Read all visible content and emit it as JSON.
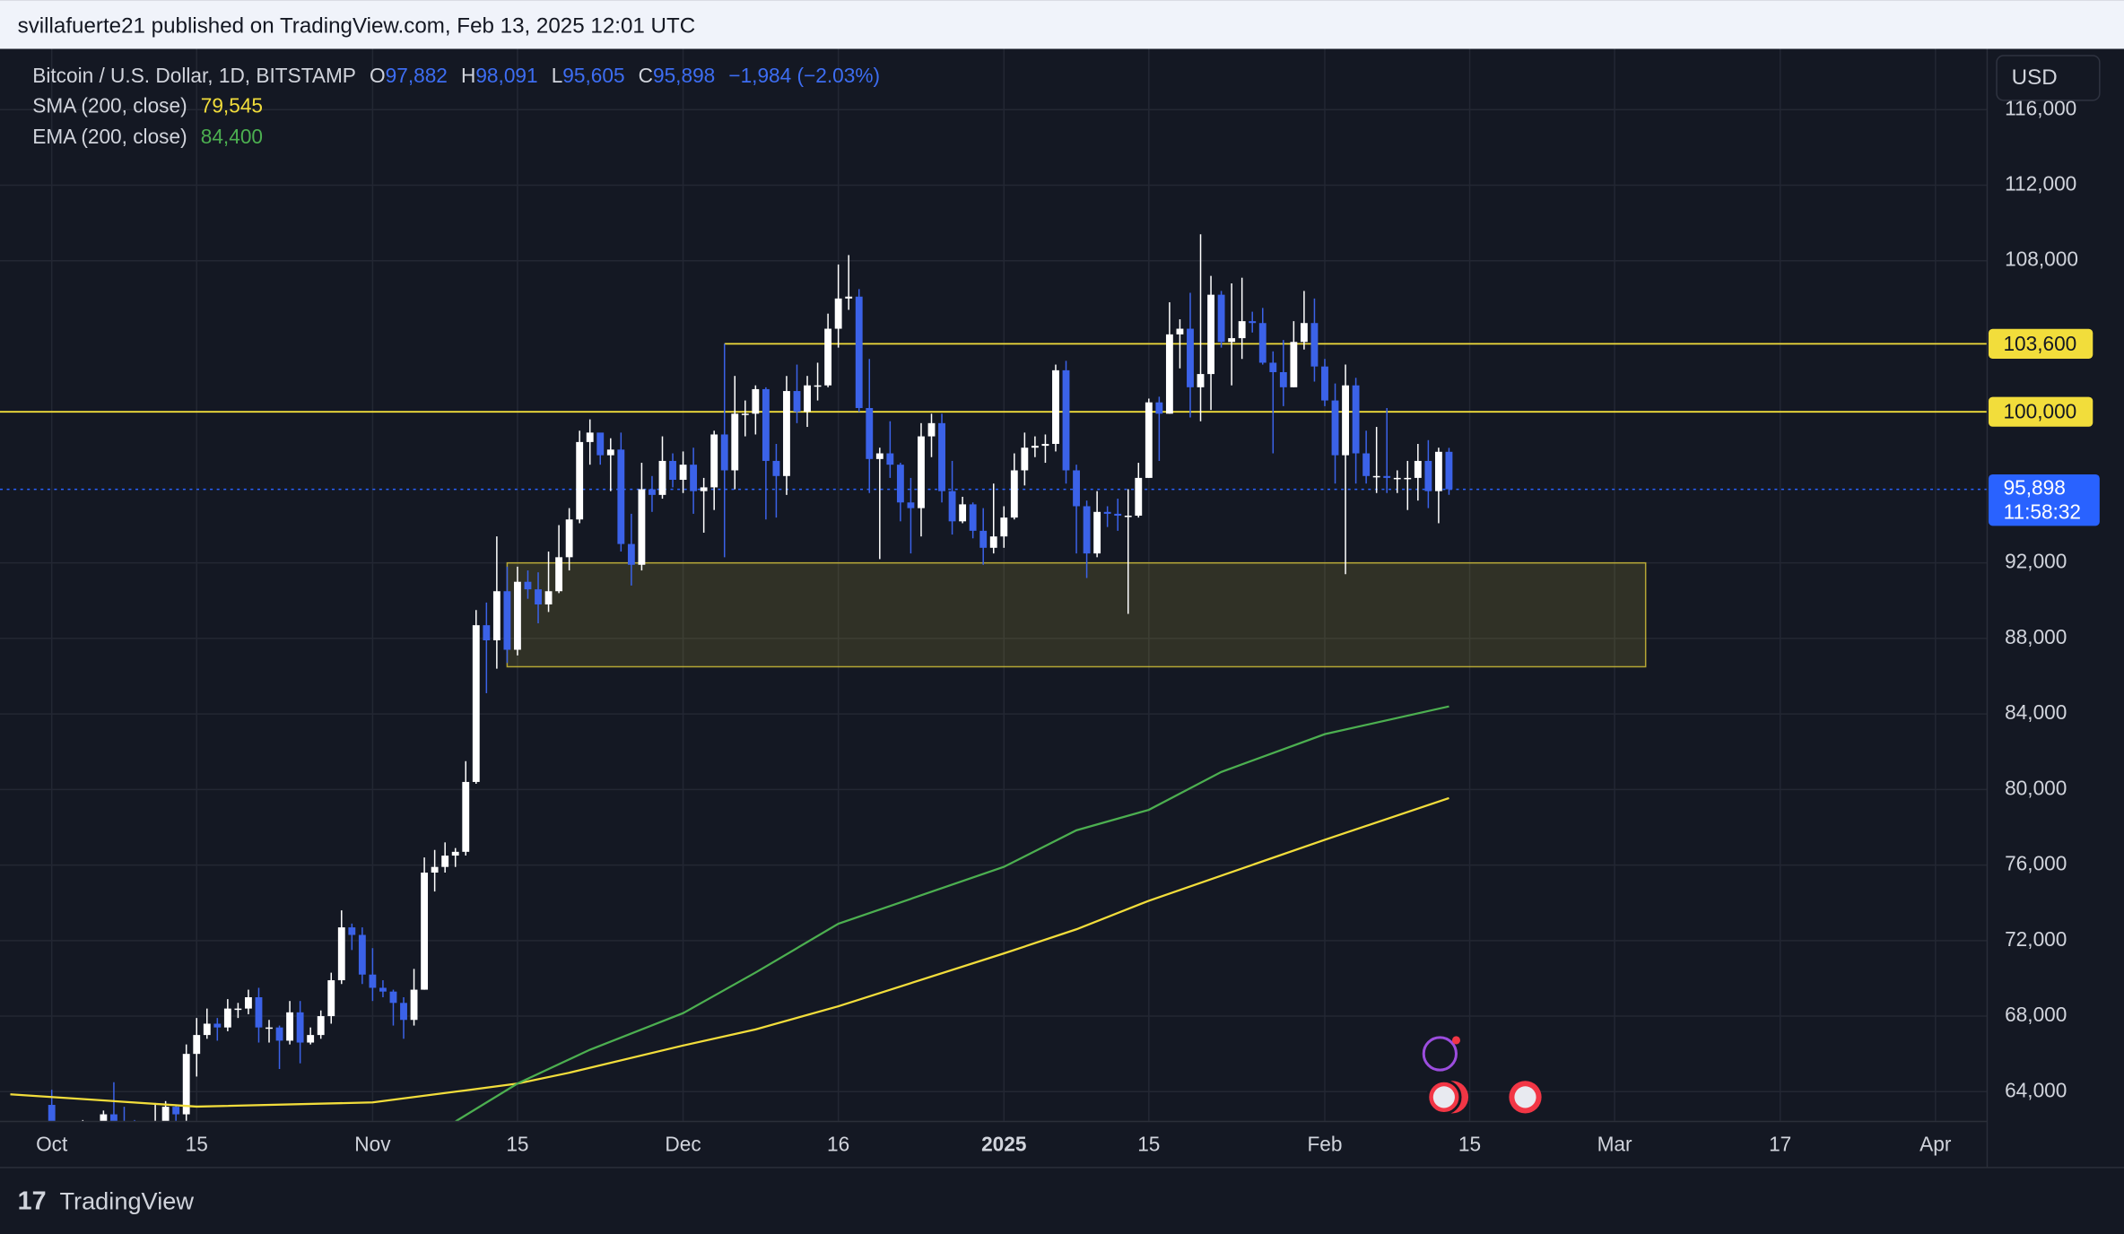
{
  "header": {
    "attribution": "svillafuerte21 published on TradingView.com, Feb 13, 2025 12:01 UTC"
  },
  "chart_data": {
    "type": "candlestick",
    "symbol": "Bitcoin / U.S. Dollar, 1D, BITSTAMP",
    "ohlc_legend": [
      {
        "prefix": "O",
        "value": "97,882"
      },
      {
        "prefix": "H",
        "value": "98,091"
      },
      {
        "prefix": "L",
        "value": "95,605"
      },
      {
        "prefix": "C",
        "value": "95,898"
      }
    ],
    "change": "−1,984 (−2.03%)",
    "currency": "USD",
    "up_color": "#ffffff",
    "down_color": "#3b62e8",
    "x": [
      "2024-10-01",
      "2024-10-02",
      "2024-10-03",
      "2024-10-04",
      "2024-10-05",
      "2024-10-06",
      "2024-10-07",
      "2024-10-08",
      "2024-10-09",
      "2024-10-10",
      "2024-10-11",
      "2024-10-12",
      "2024-10-13",
      "2024-10-14",
      "2024-10-15",
      "2024-10-16",
      "2024-10-17",
      "2024-10-18",
      "2024-10-19",
      "2024-10-20",
      "2024-10-21",
      "2024-10-22",
      "2024-10-23",
      "2024-10-24",
      "2024-10-25",
      "2024-10-26",
      "2024-10-27",
      "2024-10-28",
      "2024-10-29",
      "2024-10-30",
      "2024-10-31",
      "2024-11-01",
      "2024-11-02",
      "2024-11-03",
      "2024-11-04",
      "2024-11-05",
      "2024-11-06",
      "2024-11-07",
      "2024-11-08",
      "2024-11-09",
      "2024-11-10",
      "2024-11-11",
      "2024-11-12",
      "2024-11-13",
      "2024-11-14",
      "2024-11-15",
      "2024-11-16",
      "2024-11-17",
      "2024-11-18",
      "2024-11-19",
      "2024-11-20",
      "2024-11-21",
      "2024-11-22",
      "2024-11-23",
      "2024-11-24",
      "2024-11-25",
      "2024-11-26",
      "2024-11-27",
      "2024-11-28",
      "2024-11-29",
      "2024-11-30",
      "2024-12-01",
      "2024-12-02",
      "2024-12-03",
      "2024-12-04",
      "2024-12-05",
      "2024-12-06",
      "2024-12-07",
      "2024-12-08",
      "2024-12-09",
      "2024-12-10",
      "2024-12-11",
      "2024-12-12",
      "2024-12-13",
      "2024-12-14",
      "2024-12-15",
      "2024-12-16",
      "2024-12-17",
      "2024-12-18",
      "2024-12-19",
      "2024-12-20",
      "2024-12-21",
      "2024-12-22",
      "2024-12-23",
      "2024-12-24",
      "2024-12-25",
      "2024-12-26",
      "2024-12-27",
      "2024-12-28",
      "2024-12-29",
      "2024-12-30",
      "2024-12-31",
      "2025-01-01",
      "2025-01-02",
      "2025-01-03",
      "2025-01-04",
      "2025-01-05",
      "2025-01-06",
      "2025-01-07",
      "2025-01-08",
      "2025-01-09",
      "2025-01-10",
      "2025-01-11",
      "2025-01-12",
      "2025-01-13",
      "2025-01-14",
      "2025-01-15",
      "2025-01-16",
      "2025-01-17",
      "2025-01-18",
      "2025-01-19",
      "2025-01-20",
      "2025-01-21",
      "2025-01-22",
      "2025-01-23",
      "2025-01-24",
      "2025-01-25",
      "2025-01-26",
      "2025-01-27",
      "2025-01-28",
      "2025-01-29",
      "2025-01-30",
      "2025-01-31",
      "2025-02-01",
      "2025-02-02",
      "2025-02-03",
      "2025-02-04",
      "2025-02-05",
      "2025-02-06",
      "2025-02-07",
      "2025-02-08",
      "2025-02-09",
      "2025-02-10",
      "2025-02-11",
      "2025-02-12",
      "2025-02-13"
    ],
    "open": [
      63300,
      60800,
      60600,
      60700,
      62100,
      62050,
      62800,
      62200,
      62100,
      60600,
      60300,
      62400,
      63200,
      62800,
      66000,
      67000,
      67600,
      67400,
      68400,
      68400,
      69000,
      67400,
      67400,
      66700,
      68200,
      66600,
      67000,
      68000,
      69900,
      72700,
      72300,
      70200,
      69500,
      69300,
      68700,
      67800,
      69400,
      75600,
      75900,
      76500,
      76700,
      80400,
      88700,
      87900,
      90500,
      87400,
      91000,
      90600,
      89800,
      90500,
      92300,
      94300,
      98400,
      98900,
      97700,
      98000,
      93000,
      91900,
      95900,
      95600,
      97400,
      96400,
      97200,
      95800,
      96000,
      98800,
      96900,
      99900,
      99900,
      101200,
      97400,
      96600,
      101100,
      100000,
      101400,
      101400,
      104400,
      106000,
      106100,
      100200,
      97500,
      97800,
      97200,
      95200,
      94900,
      98700,
      99400,
      95800,
      94200,
      95100,
      93700,
      92800,
      93400,
      94400,
      96900,
      98100,
      98200,
      98300,
      102200,
      96900,
      95000,
      92500,
      94700,
      94600,
      94500,
      94500,
      96500,
      100500,
      99900,
      104100,
      104400,
      101300,
      102000,
      106200,
      103700,
      103900,
      104800,
      104700,
      102600,
      102100,
      101300,
      103700,
      104700,
      102400,
      100600,
      97700,
      101400,
      97800,
      96600,
      96600,
      96500,
      96500,
      96500,
      97400,
      95800,
      97882
    ],
    "high": [
      64100,
      62400,
      61500,
      62500,
      62400,
      63000,
      64500,
      63200,
      62500,
      61400,
      63400,
      63500,
      63300,
      66500,
      67900,
      68400,
      67900,
      68900,
      68700,
      69400,
      69500,
      67800,
      67500,
      68800,
      68800,
      67400,
      68300,
      70300,
      73600,
      72900,
      72700,
      71600,
      69900,
      69400,
      69000,
      70500,
      76400,
      76800,
      77200,
      76900,
      81500,
      89500,
      89900,
      93400,
      91800,
      91800,
      91600,
      91500,
      92600,
      94000,
      94900,
      99000,
      99600,
      98700,
      98600,
      98900,
      94600,
      97300,
      96600,
      98700,
      97800,
      97900,
      98100,
      96500,
      99000,
      103600,
      101900,
      100600,
      101400,
      101300,
      98300,
      101900,
      102500,
      101900,
      102600,
      105200,
      107800,
      108300,
      106500,
      102800,
      98100,
      99500,
      97300,
      96500,
      99400,
      99900,
      99900,
      97400,
      95500,
      95200,
      94900,
      96200,
      95000,
      97800,
      98900,
      98700,
      98800,
      102500,
      102700,
      97200,
      95300,
      95800,
      95000,
      95400,
      95900,
      97300,
      100700,
      100800,
      105800,
      104900,
      106300,
      109400,
      107200,
      106400,
      106800,
      107100,
      105300,
      105500,
      103200,
      103800,
      104800,
      106400,
      106000,
      102800,
      101500,
      102500,
      101800,
      99000,
      99200,
      100200,
      96900,
      97400,
      98300,
      98500,
      98100,
      98091
    ],
    "low": [
      60200,
      59900,
      59800,
      60500,
      61700,
      61800,
      62100,
      61800,
      60300,
      58900,
      60000,
      62300,
      62000,
      62400,
      64800,
      66800,
      66700,
      67200,
      67900,
      68100,
      66600,
      66600,
      65200,
      66500,
      65500,
      66500,
      66800,
      67600,
      69700,
      71500,
      69700,
      68800,
      69000,
      67500,
      66800,
      67500,
      69400,
      74600,
      75600,
      75900,
      76500,
      80300,
      85100,
      86400,
      86700,
      87100,
      90100,
      88800,
      89400,
      90400,
      91600,
      94100,
      97200,
      97200,
      95800,
      92600,
      90800,
      91600,
      94700,
      95400,
      96000,
      95700,
      94600,
      93600,
      94800,
      92300,
      95900,
      98700,
      98800,
      94300,
      94400,
      95600,
      99400,
      99200,
      100600,
      101300,
      103400,
      105400,
      100000,
      95700,
      92200,
      96500,
      94200,
      92500,
      93400,
      97600,
      95200,
      93500,
      94100,
      93300,
      91900,
      92500,
      92800,
      94300,
      96100,
      97600,
      97300,
      97900,
      96200,
      92500,
      91200,
      92300,
      93900,
      93700,
      89300,
      94400,
      96500,
      97400,
      99900,
      102300,
      99700,
      99500,
      100100,
      103400,
      101400,
      102800,
      104200,
      102500,
      97800,
      100300,
      101300,
      103300,
      101600,
      100300,
      96200,
      91400,
      96200,
      96200,
      95700,
      95700,
      95700,
      94800,
      95300,
      94900,
      94100,
      95605
    ],
    "close": [
      60800,
      60600,
      60700,
      62100,
      62050,
      62800,
      62200,
      62100,
      60600,
      60300,
      62400,
      63200,
      62800,
      66000,
      67000,
      67600,
      67400,
      68400,
      68400,
      69000,
      67400,
      67400,
      66700,
      68200,
      66600,
      67000,
      68000,
      69900,
      72700,
      72300,
      70200,
      69500,
      69300,
      68700,
      67800,
      69400,
      75600,
      75900,
      76500,
      76700,
      80400,
      88700,
      87900,
      90500,
      87400,
      91000,
      90600,
      89800,
      90500,
      92300,
      94300,
      98400,
      98900,
      97700,
      98000,
      93000,
      91900,
      95900,
      95600,
      97400,
      96400,
      97200,
      95800,
      96000,
      98800,
      96900,
      99900,
      99900,
      101200,
      97400,
      96600,
      101100,
      100000,
      101400,
      101400,
      104400,
      106000,
      106100,
      100200,
      97500,
      97800,
      97200,
      95200,
      94900,
      98700,
      99400,
      95800,
      94200,
      95100,
      93700,
      92800,
      93400,
      94400,
      96900,
      98100,
      98200,
      98300,
      102200,
      96900,
      95000,
      92500,
      94700,
      94600,
      94500,
      94500,
      96500,
      100500,
      99900,
      104100,
      104400,
      101300,
      102000,
      106200,
      103700,
      103900,
      104800,
      104700,
      102600,
      102100,
      101300,
      103700,
      104700,
      102400,
      100600,
      97700,
      101400,
      97800,
      96600,
      96600,
      96500,
      96500,
      96500,
      97400,
      95800,
      97882,
      95898
    ],
    "overlays": [
      {
        "name": "SMA (200, close)",
        "value_label": "79,545",
        "color": "#f2dd3b",
        "x": [
          "2024-09-27",
          "2024-10-15",
          "2024-11-01",
          "2024-11-10",
          "2024-11-15",
          "2024-11-20",
          "2024-12-01",
          "2024-12-08",
          "2024-12-16",
          "2025-01-01",
          "2025-01-08",
          "2025-01-15",
          "2025-02-01",
          "2025-02-13"
        ],
        "values": [
          63860,
          63210,
          63430,
          64070,
          64430,
          65000,
          66440,
          67300,
          68520,
          71320,
          72600,
          74110,
          77340,
          79545
        ]
      },
      {
        "name": "EMA (200, close)",
        "value_label": "84,400",
        "color": "#4caf50",
        "x": [
          "2024-11-09",
          "2024-11-15",
          "2024-11-22",
          "2024-12-01",
          "2024-12-08",
          "2024-12-16",
          "2025-01-01",
          "2025-01-08",
          "2025-01-15",
          "2025-01-22",
          "2025-02-01",
          "2025-02-13"
        ],
        "values": [
          62420,
          64430,
          66220,
          68160,
          70310,
          72890,
          75900,
          77840,
          78920,
          80930,
          82930,
          84400
        ]
      }
    ],
    "levels": [
      {
        "value": 103600,
        "label": "103,600",
        "start": "2024-12-05",
        "color": "#f2dd3b"
      },
      {
        "value": 100000,
        "label": "100,000",
        "color": "#f2dd3b"
      }
    ],
    "zone": {
      "low": 86500,
      "high": 92000,
      "start": "2024-11-14",
      "end": "2025-03-04",
      "color": "#f2dd3b"
    },
    "last_price": {
      "value": 95898,
      "label": "95,898",
      "countdown": "11:58:32",
      "color": "#2962ff"
    },
    "xlim": [
      "2024-09-26",
      "2025-04-06"
    ],
    "xticks": [
      {
        "value": "2024-10-01",
        "label": "Oct"
      },
      {
        "value": "2024-10-15",
        "label": "15"
      },
      {
        "value": "2024-11-01",
        "label": "Nov"
      },
      {
        "value": "2024-11-15",
        "label": "15"
      },
      {
        "value": "2024-12-01",
        "label": "Dec"
      },
      {
        "value": "2024-12-16",
        "label": "16"
      },
      {
        "value": "2025-01-01",
        "label": "2025"
      },
      {
        "value": "2025-01-15",
        "label": "15"
      },
      {
        "value": "2025-02-01",
        "label": "Feb"
      },
      {
        "value": "2025-02-15",
        "label": "15"
      },
      {
        "value": "2025-03-01",
        "label": "Mar"
      },
      {
        "value": "2025-03-17",
        "label": "17"
      },
      {
        "value": "2025-04-01",
        "label": "Apr"
      }
    ],
    "ylim": [
      62420,
      119220
    ],
    "yticks": [
      {
        "value": 64000,
        "label": "64,000"
      },
      {
        "value": 68000,
        "label": "68,000"
      },
      {
        "value": 72000,
        "label": "72,000"
      },
      {
        "value": 76000,
        "label": "76,000"
      },
      {
        "value": 80000,
        "label": "80,000"
      },
      {
        "value": 84000,
        "label": "84,000"
      },
      {
        "value": 88000,
        "label": "88,000"
      },
      {
        "value": 92000,
        "label": "92,000"
      },
      {
        "value": 108000,
        "label": "108,000"
      },
      {
        "value": 112000,
        "label": "112,000"
      },
      {
        "value": 116000,
        "label": "116,000"
      }
    ],
    "grid": true
  },
  "footer": {
    "brand": "TradingView"
  }
}
